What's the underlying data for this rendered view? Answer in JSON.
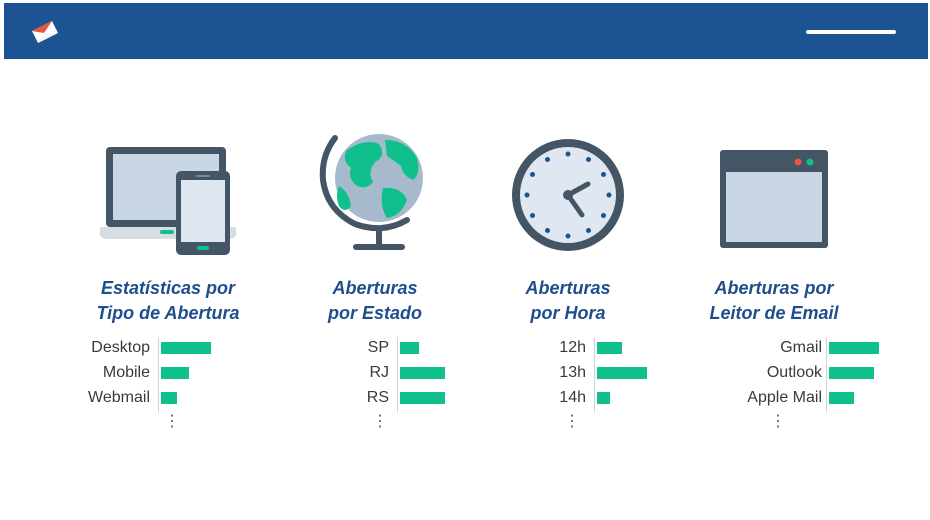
{
  "brand": {
    "logo_icon": "envelope-logo-icon",
    "menu_icon": "menu-line-icon"
  },
  "colors": {
    "header": "#1c5393",
    "title": "#1e4f8c",
    "bar": "#10c08c",
    "icon_dark": "#445566"
  },
  "columns": [
    {
      "icon": "devices-icon",
      "title": "Estatísticas por\nTipo de Abertura",
      "rows": [
        {
          "label": "Desktop",
          "value": 1.0
        },
        {
          "label": "Mobile",
          "value": 0.55
        },
        {
          "label": "Webmail",
          "value": 0.32
        }
      ],
      "more": "⋮"
    },
    {
      "icon": "globe-icon",
      "title": "Aberturas\npor Estado",
      "rows": [
        {
          "label": "SP",
          "value": 0.38
        },
        {
          "label": "RJ",
          "value": 0.9
        },
        {
          "label": "RS",
          "value": 0.9
        }
      ],
      "more": "⋮"
    },
    {
      "icon": "clock-icon",
      "title": "Aberturas\npor Hora",
      "rows": [
        {
          "label": "12h",
          "value": 0.5
        },
        {
          "label": "13h",
          "value": 1.0
        },
        {
          "label": "14h",
          "value": 0.25
        }
      ],
      "more": "⋮"
    },
    {
      "icon": "browser-window-icon",
      "title": "Aberturas por\nLeitor de Email",
      "rows": [
        {
          "label": "Gmail",
          "value": 1.0
        },
        {
          "label": "Outlook",
          "value": 0.9
        },
        {
          "label": "Apple Mail",
          "value": 0.5
        }
      ],
      "more": "⋮"
    }
  ]
}
